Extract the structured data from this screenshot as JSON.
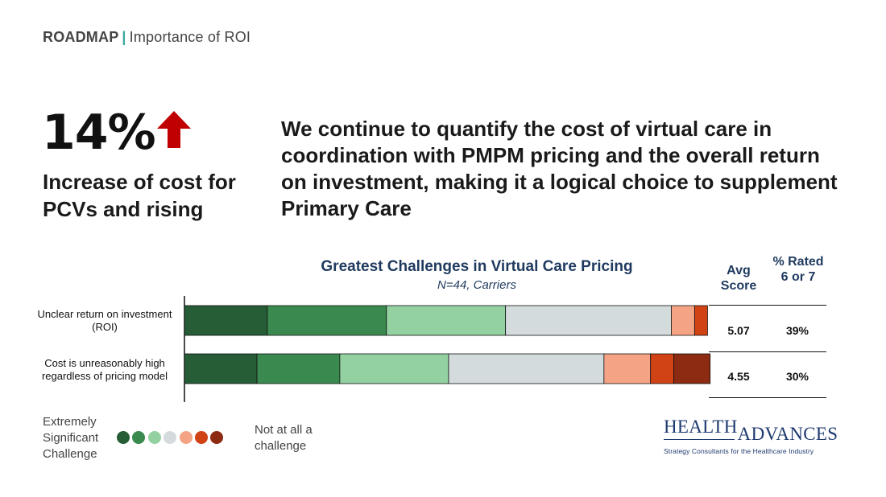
{
  "breadcrumb": {
    "section": "ROADMAP",
    "separator": "|",
    "page": "Importance of ROI"
  },
  "stat": {
    "value": "14%",
    "caption": "Increase of cost for PCVs and rising",
    "arrow_color": "#c00000"
  },
  "headline": "We continue to quantify the cost of virtual care in coordination with PMPM pricing and the overall return on investment, making it a logical choice to supplement Primary Care",
  "chart_data": {
    "type": "bar",
    "orientation": "horizontal-stacked",
    "title": "Greatest Challenges in Virtual Care Pricing",
    "subtitle": "N=44, Carriers",
    "categories": [
      "Unclear return on investment (ROI)",
      "Cost is unreasonably high regardless of pricing model"
    ],
    "series": [
      {
        "color": "#265c36",
        "values": [
          16,
          14
        ]
      },
      {
        "color": "#3a8a4f",
        "values": [
          23,
          16
        ]
      },
      {
        "color": "#93d1a0",
        "values": [
          23,
          21
        ]
      },
      {
        "color": "#d3dbdd",
        "values": [
          32,
          30
        ]
      },
      {
        "color": "#f4a385",
        "values": [
          4.5,
          9
        ]
      },
      {
        "color": "#d14214",
        "values": [
          2.5,
          4.5
        ]
      },
      {
        "color": "#8c2a12",
        "values": [
          0,
          7
        ]
      }
    ],
    "xlim": [
      0,
      100
    ],
    "table": {
      "headers": [
        "Avg Score",
        "% Rated 6 or 7"
      ],
      "rows": [
        [
          "5.07",
          "39%"
        ],
        [
          "4.55",
          "30%"
        ]
      ]
    },
    "legend": {
      "left_label": "Extremely Significant Challenge",
      "right_label": "Not at all a challenge"
    }
  },
  "logo": {
    "main_left": "HEALTH",
    "main_right": "ADVANCES",
    "tagline": "Strategy Consultants for the Healthcare Industry"
  }
}
